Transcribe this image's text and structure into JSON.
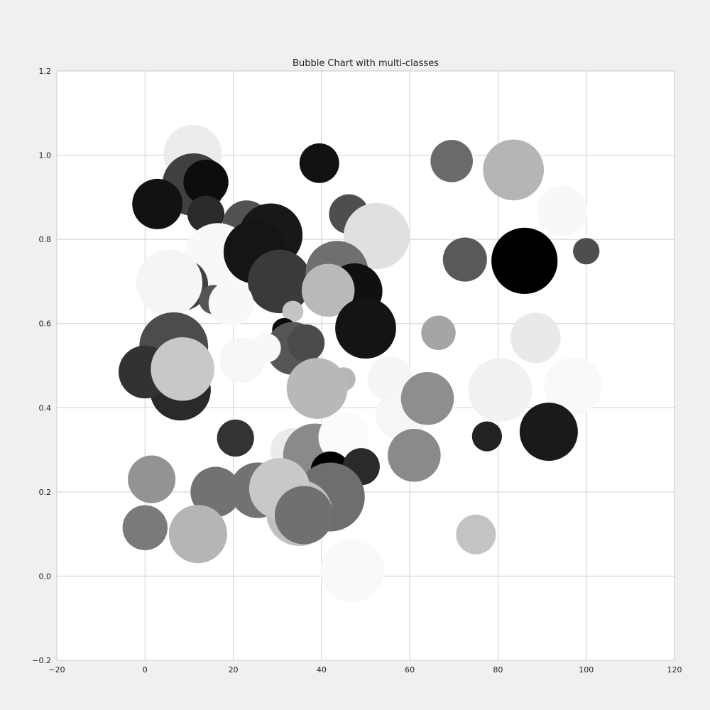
{
  "chart_data": {
    "type": "scatter",
    "title": "Bubble Chart with multi-classes",
    "xlabel": "",
    "ylabel": "",
    "xlim": [
      -20,
      120
    ],
    "ylim": [
      -0.2,
      1.2
    ],
    "x_ticks": [
      -20,
      0,
      20,
      40,
      60,
      80,
      100,
      120
    ],
    "x_tick_labels": [
      "−20",
      "0",
      "20",
      "40",
      "60",
      "80",
      "100",
      "120"
    ],
    "y_ticks": [
      -0.2,
      0.0,
      0.2,
      0.4,
      0.6,
      0.8,
      1.0,
      1.2
    ],
    "y_tick_labels": [
      "−0.2",
      "0.0",
      "0.2",
      "0.4",
      "0.6",
      "0.8",
      "1.0",
      "1.2"
    ],
    "grid": true,
    "legend": "none",
    "points": [
      {
        "x": 10.8,
        "y": 1.003,
        "r": 6.6,
        "color": "#ececec"
      },
      {
        "x": 39.5,
        "y": 0.981,
        "r": 4.5,
        "color": "#111111"
      },
      {
        "x": 69.5,
        "y": 0.986,
        "r": 4.8,
        "color": "#6a6a6a"
      },
      {
        "x": 83.5,
        "y": 0.965,
        "r": 6.9,
        "color": "#b5b5b5"
      },
      {
        "x": 94.5,
        "y": 0.867,
        "r": 5.7,
        "color": "#f8f8f8"
      },
      {
        "x": 11.0,
        "y": 0.93,
        "r": 7.1,
        "color": "#404040"
      },
      {
        "x": 13.8,
        "y": 0.936,
        "r": 5.1,
        "color": "#0d0d0d"
      },
      {
        "x": 2.8,
        "y": 0.884,
        "r": 5.7,
        "color": "#121212"
      },
      {
        "x": 13.8,
        "y": 0.86,
        "r": 4.2,
        "color": "#2a2a2a"
      },
      {
        "x": 46.2,
        "y": 0.86,
        "r": 4.5,
        "color": "#4e4e4e"
      },
      {
        "x": 23.0,
        "y": 0.836,
        "r": 5.4,
        "color": "#525252"
      },
      {
        "x": 28.5,
        "y": 0.81,
        "r": 7.2,
        "color": "#181818"
      },
      {
        "x": 52.5,
        "y": 0.808,
        "r": 7.5,
        "color": "#e0e0e0"
      },
      {
        "x": 16.5,
        "y": 0.76,
        "r": 7.5,
        "color": "#f8f8f8"
      },
      {
        "x": 25.0,
        "y": 0.77,
        "r": 7.2,
        "color": "#151515"
      },
      {
        "x": 72.5,
        "y": 0.752,
        "r": 5.0,
        "color": "#595959"
      },
      {
        "x": 86.0,
        "y": 0.749,
        "r": 7.5,
        "color": "#000000"
      },
      {
        "x": 100.0,
        "y": 0.772,
        "r": 3.0,
        "color": "#4e4e4e"
      },
      {
        "x": 8.5,
        "y": 0.692,
        "r": 5.8,
        "color": "#404040"
      },
      {
        "x": 15.5,
        "y": 0.657,
        "r": 3.3,
        "color": "#555555"
      },
      {
        "x": 30.5,
        "y": 0.7,
        "r": 7.2,
        "color": "#3a3a3a"
      },
      {
        "x": 43.5,
        "y": 0.722,
        "r": 7.1,
        "color": "#6f6f6f"
      },
      {
        "x": 47.5,
        "y": 0.677,
        "r": 6.3,
        "color": "#101010"
      },
      {
        "x": 5.5,
        "y": 0.697,
        "r": 7.5,
        "color": "#f5f5f5"
      },
      {
        "x": 19.5,
        "y": 0.648,
        "r": 5.1,
        "color": "#f8f8f8"
      },
      {
        "x": 41.5,
        "y": 0.679,
        "r": 6.0,
        "color": "#b9b9b9"
      },
      {
        "x": 33.5,
        "y": 0.629,
        "r": 2.4,
        "color": "#c4c4c4"
      },
      {
        "x": 50.0,
        "y": 0.589,
        "r": 6.9,
        "color": "#141414"
      },
      {
        "x": 66.5,
        "y": 0.578,
        "r": 3.9,
        "color": "#a5a5a5"
      },
      {
        "x": 88.5,
        "y": 0.566,
        "r": 5.7,
        "color": "#e9e9e9"
      },
      {
        "x": 31.5,
        "y": 0.585,
        "r": 2.7,
        "color": "#0b0b0b"
      },
      {
        "x": 33.5,
        "y": 0.541,
        "r": 6.0,
        "color": "#565656"
      },
      {
        "x": 36.5,
        "y": 0.554,
        "r": 4.2,
        "color": "#4a4a4a"
      },
      {
        "x": 27.5,
        "y": 0.542,
        "r": 3.3,
        "color": "#f8f8f8"
      },
      {
        "x": 22.0,
        "y": 0.513,
        "r": 5.1,
        "color": "#f6f6f6"
      },
      {
        "x": 6.5,
        "y": 0.545,
        "r": 7.8,
        "color": "#4c4c4c"
      },
      {
        "x": 8.0,
        "y": 0.442,
        "r": 6.9,
        "color": "#2a2a2a"
      },
      {
        "x": 0.0,
        "y": 0.485,
        "r": 6.0,
        "color": "#323232"
      },
      {
        "x": 8.5,
        "y": 0.492,
        "r": 7.2,
        "color": "#c8c8c8"
      },
      {
        "x": 45.0,
        "y": 0.468,
        "r": 2.7,
        "color": "#b5b5b5"
      },
      {
        "x": 55.5,
        "y": 0.468,
        "r": 5.1,
        "color": "#f5f5f5"
      },
      {
        "x": 58.0,
        "y": 0.382,
        "r": 5.7,
        "color": "#f6f6f6"
      },
      {
        "x": 39.0,
        "y": 0.446,
        "r": 6.9,
        "color": "#b8b8b8"
      },
      {
        "x": 64.0,
        "y": 0.422,
        "r": 6.0,
        "color": "#8e8e8e"
      },
      {
        "x": 80.5,
        "y": 0.442,
        "r": 7.2,
        "color": "#f1f1f1"
      },
      {
        "x": 97.0,
        "y": 0.451,
        "r": 6.6,
        "color": "#f9f9f9"
      },
      {
        "x": 20.5,
        "y": 0.328,
        "r": 4.2,
        "color": "#333333"
      },
      {
        "x": 91.5,
        "y": 0.343,
        "r": 6.6,
        "color": "#1a1a1a"
      },
      {
        "x": 77.5,
        "y": 0.332,
        "r": 3.4,
        "color": "#222222"
      },
      {
        "x": 33.5,
        "y": 0.298,
        "r": 5.1,
        "color": "#ebebeb"
      },
      {
        "x": 38.5,
        "y": 0.287,
        "r": 7.2,
        "color": "#8a8a8a"
      },
      {
        "x": 45.0,
        "y": 0.33,
        "r": 5.7,
        "color": "#fbfbfb"
      },
      {
        "x": 42.0,
        "y": 0.249,
        "r": 4.5,
        "color": "#000000"
      },
      {
        "x": 49.0,
        "y": 0.26,
        "r": 4.2,
        "color": "#2a2a2a"
      },
      {
        "x": 61.0,
        "y": 0.287,
        "r": 6.0,
        "color": "#8a8a8a"
      },
      {
        "x": 1.5,
        "y": 0.23,
        "r": 5.4,
        "color": "#939393"
      },
      {
        "x": 16.0,
        "y": 0.2,
        "r": 5.7,
        "color": "#727272"
      },
      {
        "x": 25.5,
        "y": 0.204,
        "r": 6.3,
        "color": "#727272"
      },
      {
        "x": 42.0,
        "y": 0.188,
        "r": 7.8,
        "color": "#6e6e6e"
      },
      {
        "x": 35.0,
        "y": 0.15,
        "r": 7.5,
        "color": "#c0c0c0"
      },
      {
        "x": 30.5,
        "y": 0.208,
        "r": 6.9,
        "color": "#c8c8c8"
      },
      {
        "x": 36.0,
        "y": 0.145,
        "r": 6.6,
        "color": "#707070"
      },
      {
        "x": 0.0,
        "y": 0.115,
        "r": 5.1,
        "color": "#7a7a7a"
      },
      {
        "x": 12.0,
        "y": 0.1,
        "r": 6.6,
        "color": "#b5b5b5"
      },
      {
        "x": 75.0,
        "y": 0.099,
        "r": 4.5,
        "color": "#c3c3c3"
      },
      {
        "x": 47.0,
        "y": 0.013,
        "r": 7.2,
        "color": "#f9f9f9"
      }
    ]
  }
}
